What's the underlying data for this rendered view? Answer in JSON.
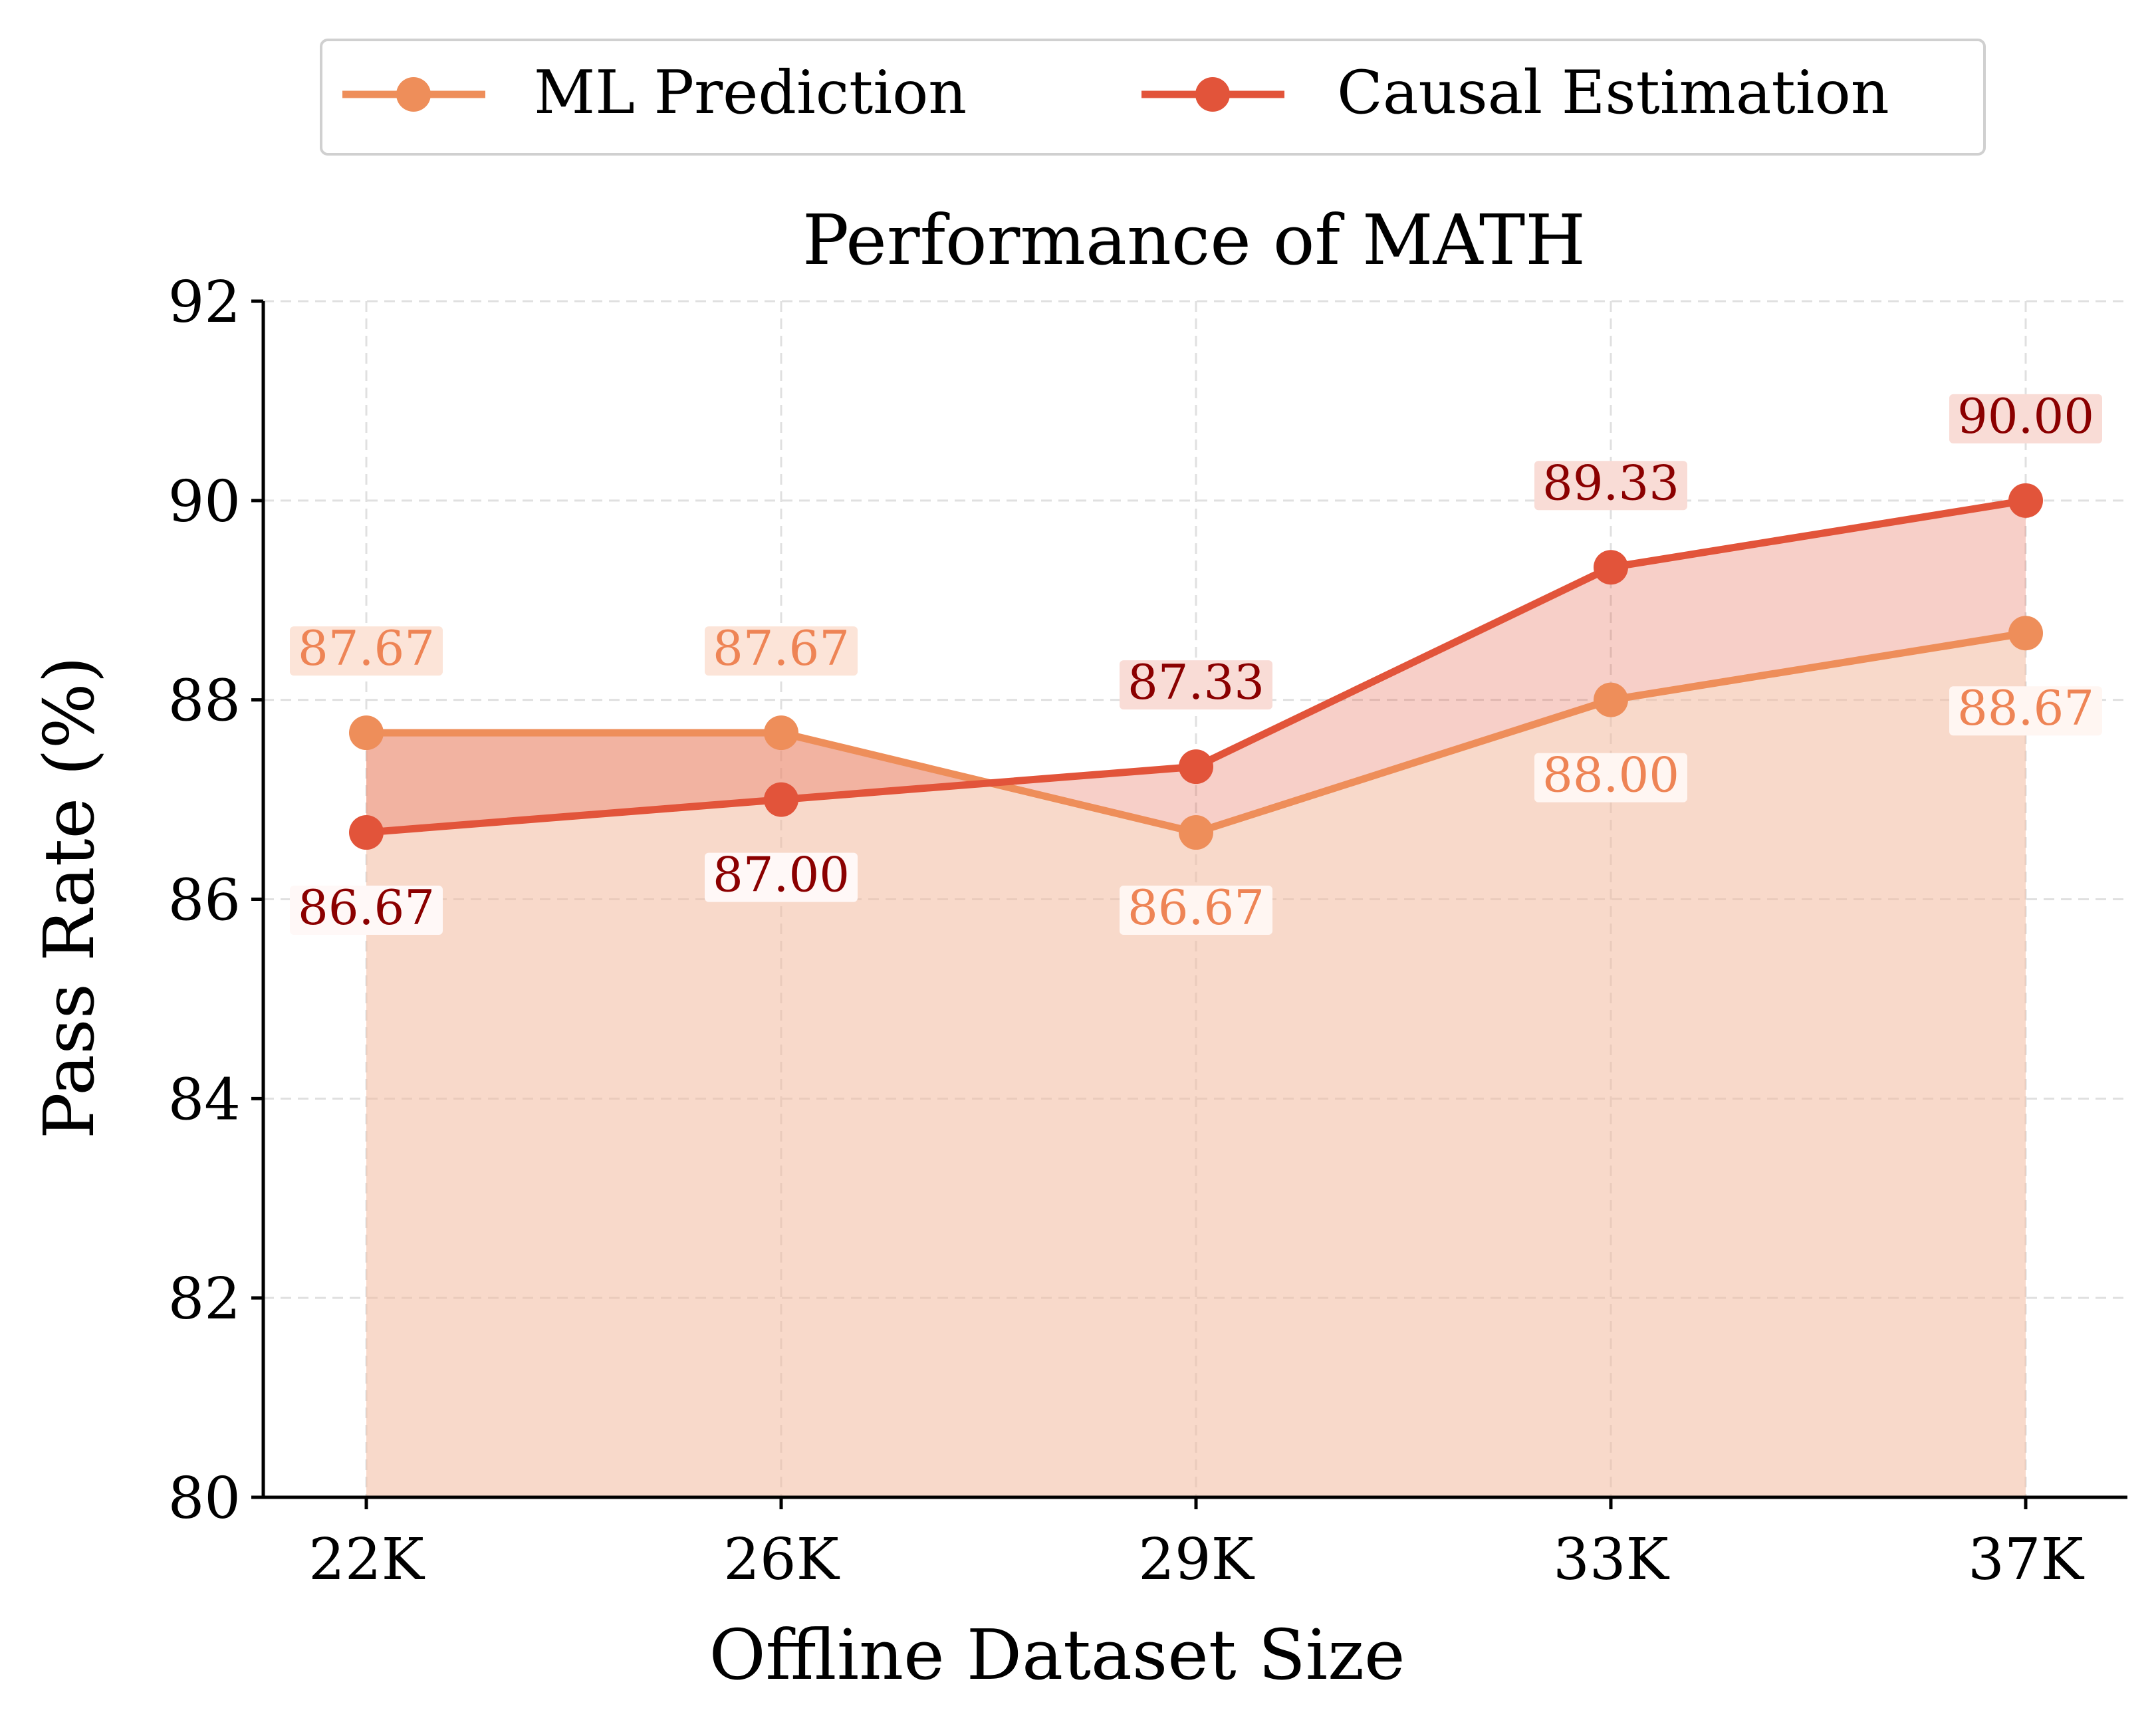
{
  "chart_data": {
    "type": "line",
    "title": "Performance of MATH",
    "xlabel": "Offline Dataset Size",
    "ylabel": "Pass Rate (%)",
    "categories": [
      "22K",
      "26K",
      "29K",
      "33K",
      "37K"
    ],
    "ylim": [
      80,
      92
    ],
    "yticks": [
      80,
      82,
      84,
      86,
      88,
      90,
      92
    ],
    "grid": true,
    "legend_position": "top-center",
    "series": [
      {
        "name": "ML Prediction",
        "values": [
          87.67,
          87.67,
          86.67,
          88.0,
          88.67
        ],
        "labels": [
          "87.67",
          "87.67",
          "86.67",
          "88.00",
          "88.67"
        ],
        "color": "#EE8E5A",
        "label_color": "#EE8455"
      },
      {
        "name": "Causal Estimation",
        "values": [
          86.67,
          87.0,
          87.33,
          89.33,
          90.0
        ],
        "labels": [
          "86.67",
          "87.00",
          "87.33",
          "89.33",
          "90.00"
        ],
        "color": "#E2543A",
        "label_color": "#8B0000"
      }
    ]
  }
}
